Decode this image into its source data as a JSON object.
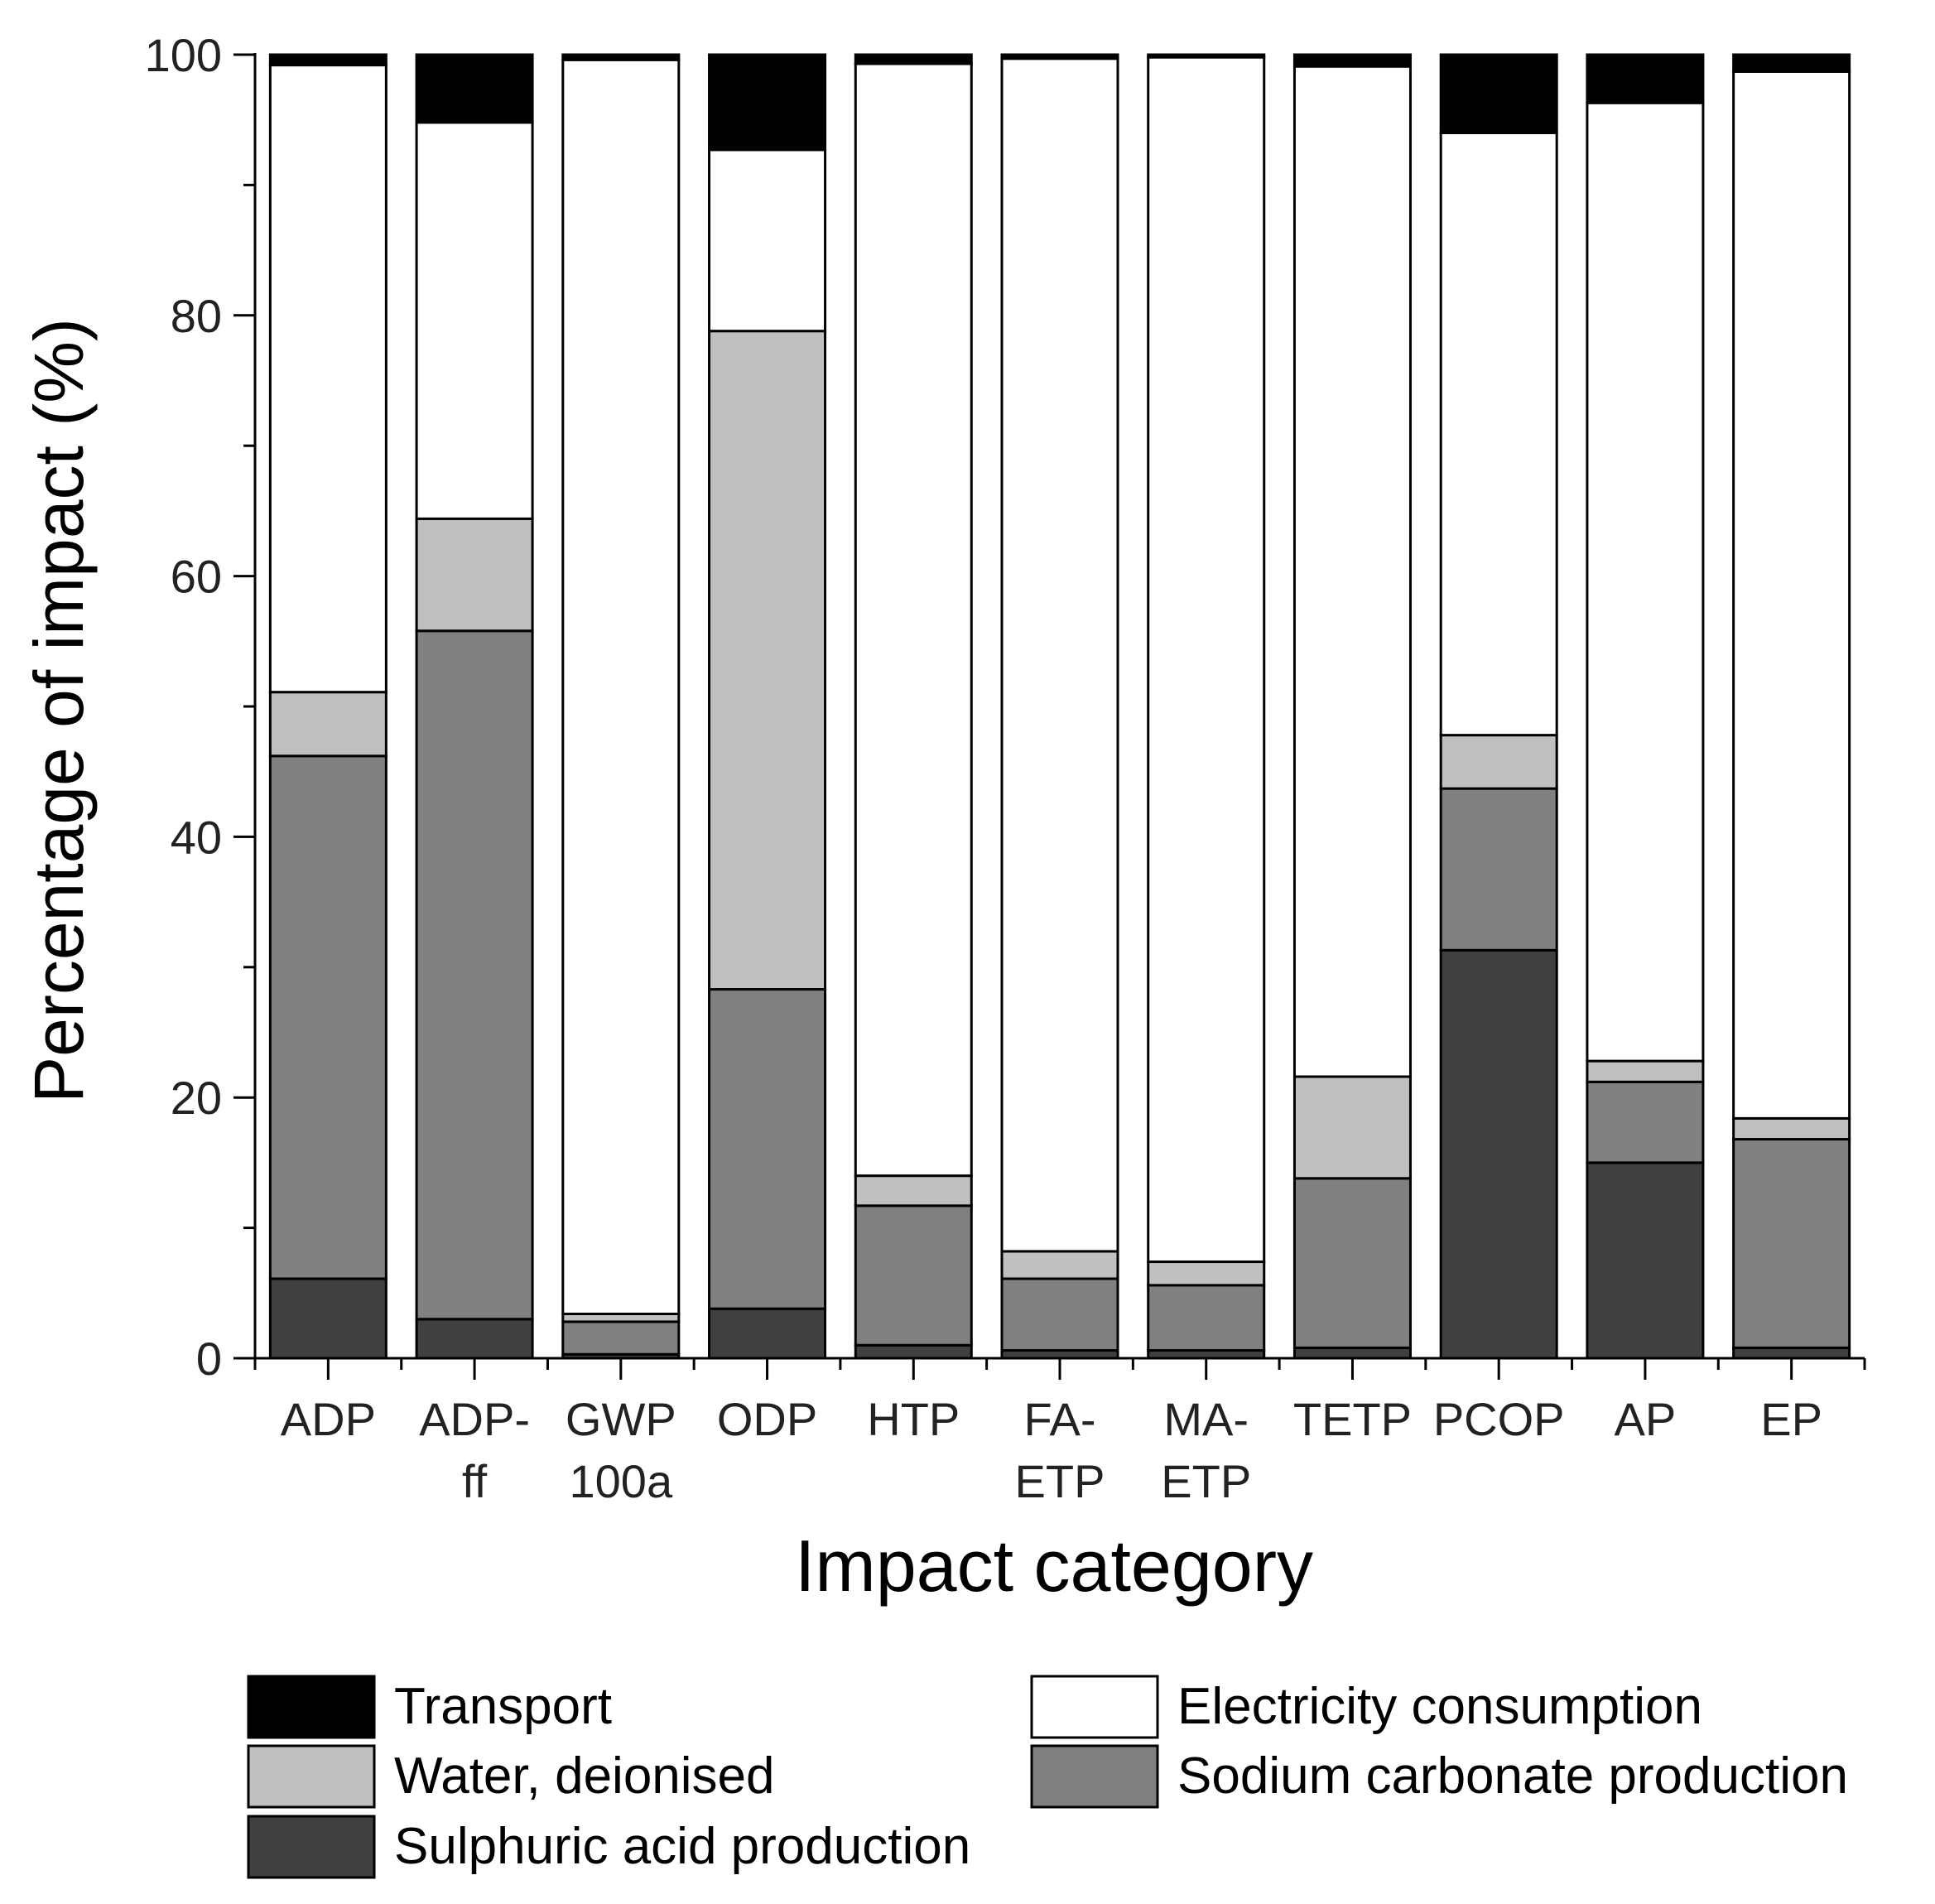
{
  "chart_data": {
    "type": "bar",
    "stacked": true,
    "title": "",
    "xlabel": "Impact category",
    "ylabel": "Percentage of impact (%)",
    "ylim": [
      0,
      100
    ],
    "yticks": [
      0,
      20,
      40,
      60,
      80,
      100
    ],
    "categories": [
      [
        "ADP"
      ],
      [
        "ADP-",
        "ff"
      ],
      [
        "GWP",
        "100a"
      ],
      [
        "ODP"
      ],
      [
        "HTP"
      ],
      [
        "FA-",
        "ETP"
      ],
      [
        "MA-",
        "ETP"
      ],
      [
        "TETP"
      ],
      [
        "PCOP"
      ],
      [
        "AP"
      ],
      [
        "EP"
      ]
    ],
    "series": [
      {
        "name": "Sulphuric acid production",
        "color": "#404040",
        "values": [
          6.1,
          3.0,
          0.3,
          3.8,
          1.0,
          0.6,
          0.6,
          0.8,
          31.3,
          15.0,
          0.8
        ]
      },
      {
        "name": "Sodium carbonate production",
        "color": "#808080",
        "values": [
          40.1,
          52.8,
          2.5,
          24.5,
          10.7,
          5.5,
          5.0,
          13.0,
          12.4,
          6.2,
          16.0
        ]
      },
      {
        "name": "Water, deionised",
        "color": "#c0c0c0",
        "values": [
          4.9,
          8.6,
          0.6,
          50.5,
          2.3,
          2.1,
          1.8,
          7.8,
          4.1,
          1.6,
          1.6
        ]
      },
      {
        "name": "Electricity consumption",
        "color": "#ffffff",
        "values": [
          48.1,
          30.4,
          96.2,
          13.9,
          85.3,
          91.5,
          92.4,
          77.5,
          46.2,
          73.5,
          80.3
        ]
      },
      {
        "name": "Transport",
        "color": "#000000",
        "values": [
          0.8,
          5.2,
          0.4,
          7.3,
          0.7,
          0.3,
          0.2,
          0.9,
          6.0,
          3.7,
          1.3
        ]
      }
    ],
    "legend": {
      "position": "bottom",
      "order": [
        "Transport",
        "Electricity consumption",
        "Water, deionised",
        "Sodium carbonate production",
        "Sulphuric acid production"
      ]
    },
    "grid": false
  }
}
